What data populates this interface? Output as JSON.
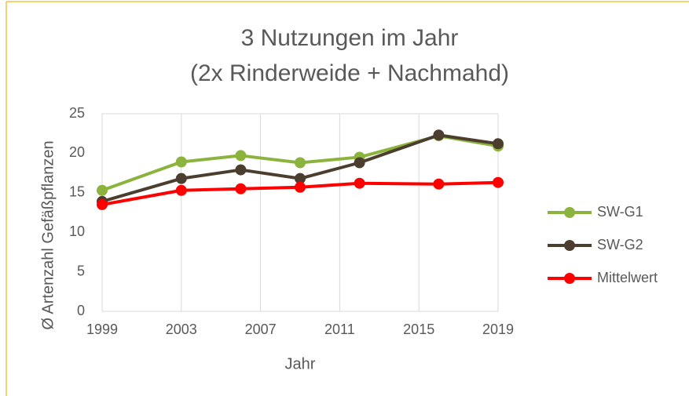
{
  "chart_data": {
    "type": "line",
    "title": [
      "3 Nutzungen im Jahr",
      "(2x Rinderweide + Nachmahd)"
    ],
    "x_label": "Jahr",
    "y_label": "Ø Artenzahl Gefäßpflanzen",
    "x": [
      1999,
      2003,
      2006,
      2009,
      2012,
      2016,
      2019
    ],
    "series": [
      {
        "name": "SW-G1",
        "color": "#8cb33e",
        "values": [
          15.3,
          18.9,
          19.7,
          18.8,
          19.5,
          22.2,
          20.9
        ]
      },
      {
        "name": "SW-G2",
        "color": "#4b3e2f",
        "values": [
          13.9,
          16.8,
          17.9,
          16.8,
          18.8,
          22.3,
          21.2
        ]
      },
      {
        "name": "Mittelwert",
        "color": "#ff0000",
        "values": [
          13.5,
          15.3,
          15.5,
          15.7,
          16.2,
          16.1,
          16.3
        ]
      }
    ],
    "xlim": [
      1999,
      2019
    ],
    "xticks": [
      1999,
      2003,
      2007,
      2011,
      2015,
      2019
    ],
    "ylim": [
      0,
      25
    ],
    "yticks": [
      0,
      5,
      10,
      15,
      20,
      25
    ],
    "grid": "x",
    "legend": "right"
  }
}
